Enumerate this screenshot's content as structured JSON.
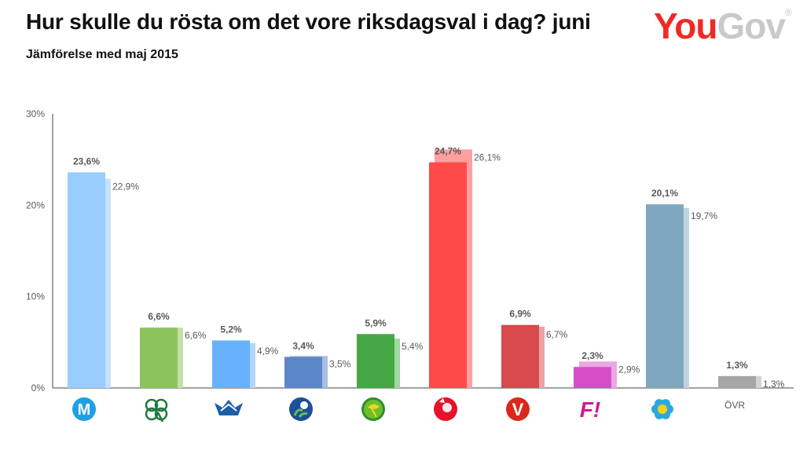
{
  "header": {
    "title": "Hur skulle du rösta om det vore riksdagsval i dag? juni",
    "subtitle": "Jämförelse med maj 2015",
    "logo_you": "You",
    "logo_gov": "Gov",
    "logo_reg": "®"
  },
  "chart_data": {
    "type": "bar",
    "ylim": [
      0,
      30
    ],
    "yticks": [
      0,
      10,
      20,
      30
    ],
    "ytick_labels": [
      "0%",
      "10%",
      "20%",
      "30%"
    ],
    "grid": false,
    "categories": [
      {
        "party": "M",
        "icon": "moderaterna-icon",
        "color": "#99ccff",
        "prev_color": "#c5e1ff",
        "current": 23.6,
        "previous": 22.9,
        "current_label": "23,6%",
        "previous_label": "22,9%"
      },
      {
        "party": "C",
        "icon": "centerpartiet-icon",
        "color": "#8dc35c",
        "prev_color": "#c3e0a4",
        "current": 6.6,
        "previous": 6.6,
        "current_label": "6,6%",
        "previous_label": "6,6%"
      },
      {
        "party": "FP",
        "icon": "folkpartiet-icon",
        "color": "#66b2ff",
        "prev_color": "#b0d6ff",
        "current": 5.2,
        "previous": 4.9,
        "current_label": "5,2%",
        "previous_label": "4,9%"
      },
      {
        "party": "KD",
        "icon": "kristdemokraterna-icon",
        "color": "#5b87c8",
        "prev_color": "#a7bfe3",
        "current": 3.4,
        "previous": 3.5,
        "current_label": "3,4%",
        "previous_label": "3,5%"
      },
      {
        "party": "MP",
        "icon": "miljopartiet-icon",
        "color": "#45a845",
        "prev_color": "#a2d6a2",
        "current": 5.9,
        "previous": 5.4,
        "current_label": "5,9%",
        "previous_label": "5,4%"
      },
      {
        "party": "S",
        "icon": "socialdemokraterna-icon",
        "color": "#ff4a4a",
        "prev_color": "#ff9f9f",
        "current": 24.7,
        "previous": 26.1,
        "current_label": "24,7%",
        "previous_label": "26,1%"
      },
      {
        "party": "V",
        "icon": "vansterpartiet-icon",
        "color": "#d84a4e",
        "prev_color": "#eba2a4",
        "current": 6.9,
        "previous": 6.7,
        "current_label": "6,9%",
        "previous_label": "6,7%"
      },
      {
        "party": "FI",
        "icon": "feministiskt-initiativ-icon",
        "color": "#d44fc7",
        "prev_color": "#eba8e3",
        "current": 2.3,
        "previous": 2.9,
        "current_label": "2,3%",
        "previous_label": "2,9%",
        "icon_text": "F!"
      },
      {
        "party": "SD",
        "icon": "sverigedemokraterna-icon",
        "color": "#7fa7bf",
        "prev_color": "#c1d4e0",
        "current": 20.1,
        "previous": 19.7,
        "current_label": "20,1%",
        "previous_label": "19,7%"
      },
      {
        "party": "ÖVR",
        "icon": "",
        "color": "#a6a6a6",
        "prev_color": "#d4d4d4",
        "current": 1.3,
        "previous": 1.3,
        "current_label": "1,3%",
        "previous_label": "1,3%",
        "icon_text": "ÖVR"
      }
    ]
  }
}
